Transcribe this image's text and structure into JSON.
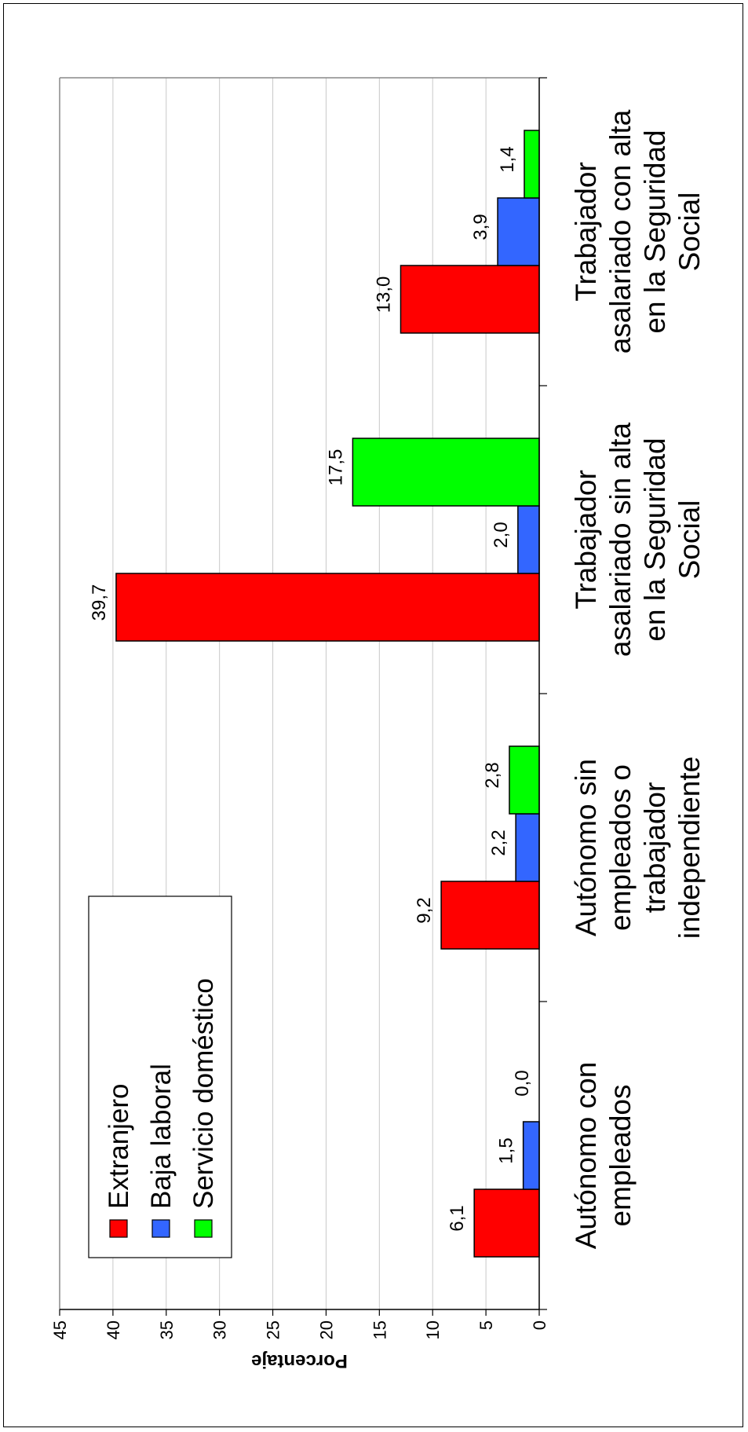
{
  "chart_data": {
    "type": "bar",
    "orientation": "rotated-90-ccw",
    "title": "",
    "xlabel": "",
    "ylabel": "Porcentaje",
    "ylim": [
      0,
      45
    ],
    "yticks": [
      "0",
      "5",
      "10",
      "15",
      "20",
      "25",
      "30",
      "35",
      "40",
      "45"
    ],
    "grid": true,
    "legend_position": "top-left",
    "categories": [
      [
        "Autónomo con",
        "empleados"
      ],
      [
        "Autónomo sin",
        "empleados o",
        "trabajador",
        "independiente"
      ],
      [
        "Trabajador",
        "asalariado sin alta",
        "en la Seguridad",
        "Social"
      ],
      [
        "Trabajador",
        "asalariado con alta",
        "en la Seguridad",
        "Social"
      ]
    ],
    "series": [
      {
        "name": "Extranjero",
        "color": "#ff0000",
        "values": [
          6.1,
          9.2,
          39.7,
          13.0
        ],
        "labels": [
          "6,1",
          "9,2",
          "39,7",
          "13,0"
        ]
      },
      {
        "name": "Baja laboral",
        "color": "#3366ff",
        "values": [
          1.5,
          2.2,
          2.0,
          3.9
        ],
        "labels": [
          "1,5",
          "2,2",
          "2,0",
          "3,9"
        ]
      },
      {
        "name": "Servicio doméstico",
        "color": "#00ff00",
        "values": [
          0.0,
          2.8,
          17.5,
          1.4
        ],
        "labels": [
          "0,0",
          "2,8",
          "17,5",
          "1,4"
        ]
      }
    ]
  }
}
